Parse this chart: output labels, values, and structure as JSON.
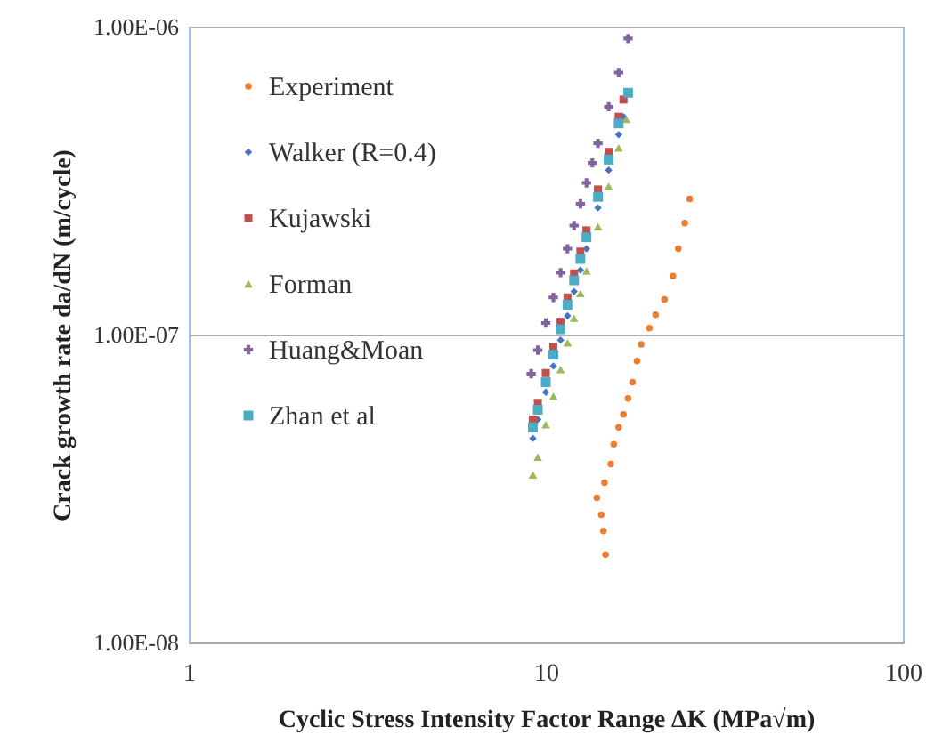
{
  "chart_data": {
    "type": "scatter",
    "xlabel": "Cyclic Stress Intensity Factor Range ΔK (MPa√m)",
    "ylabel": "Crack growth rate da/dN (m/cycle)",
    "log": "xy",
    "grid": "y",
    "legend": "top left",
    "xlim": [
      1,
      100
    ],
    "xticks": [
      1,
      10,
      100
    ],
    "ylim": [
      1e-08,
      1e-06
    ],
    "yticks": [
      {
        "value": 1e-08,
        "label": "1.00E-08"
      },
      {
        "value": 1e-07,
        "label": "1.00E-07"
      },
      {
        "value": 1e-06,
        "label": "1.00E-06"
      }
    ],
    "series": [
      {
        "name": "Experiment",
        "color": "#ed7d31",
        "marker": "circle",
        "x": [
          14.7,
          14.5,
          14.3,
          13.9,
          14.6,
          15.2,
          15.5,
          16.0,
          16.5,
          17.0,
          17.5,
          18.0,
          18.5,
          19.5,
          20.3,
          21.5,
          22.7,
          23.5,
          24.5,
          25.3
        ],
        "values": [
          1.93e-08,
          2.3e-08,
          2.6e-08,
          2.95e-08,
          3.3e-08,
          3.8e-08,
          4.4e-08,
          5e-08,
          5.5e-08,
          6.2e-08,
          7e-08,
          8.2e-08,
          9.3e-08,
          1.05e-07,
          1.16e-07,
          1.3e-07,
          1.55e-07,
          1.9e-07,
          2.3e-07,
          2.76e-07
        ]
      },
      {
        "name": "Walker (R=0.4)",
        "color": "#4472c4",
        "marker": "diamond",
        "x": [
          9.2,
          9.5,
          10,
          10.5,
          11,
          11.5,
          12,
          12.5,
          13,
          14,
          15,
          16,
          16.5
        ],
        "values": [
          4.6e-08,
          5.3e-08,
          6.5e-08,
          7.9e-08,
          9.6e-08,
          1.15e-07,
          1.38e-07,
          1.62e-07,
          1.9e-07,
          2.58e-07,
          3.42e-07,
          4.46e-07,
          5.1e-07
        ]
      },
      {
        "name": "Kujawski",
        "color": "#c0504d",
        "marker": "square",
        "x": [
          9.2,
          9.5,
          10,
          10.5,
          11,
          11.5,
          12,
          12.5,
          13,
          14,
          15,
          16,
          16.5
        ],
        "values": [
          5.3e-08,
          6e-08,
          7.5e-08,
          9.1e-08,
          1.1e-07,
          1.32e-07,
          1.58e-07,
          1.86e-07,
          2.18e-07,
          2.96e-07,
          3.92e-07,
          5.1e-07,
          5.8e-07
        ]
      },
      {
        "name": "Forman",
        "color": "#9bbb59",
        "marker": "triangle",
        "x": [
          9.2,
          9.5,
          10,
          10.5,
          11,
          11.5,
          12,
          12.5,
          13,
          14,
          15,
          16,
          16.8
        ],
        "values": [
          3.5e-08,
          4e-08,
          5.1e-08,
          6.3e-08,
          7.7e-08,
          9.4e-08,
          1.13e-07,
          1.36e-07,
          1.61e-07,
          2.24e-07,
          3.03e-07,
          4.04e-07,
          5e-07
        ]
      },
      {
        "name": "Huang&Moan",
        "color": "#8064a2",
        "marker": "cross",
        "x": [
          9.1,
          9.5,
          10,
          10.5,
          11,
          11.5,
          12,
          12.5,
          13,
          13.5,
          14,
          15,
          16,
          17
        ],
        "values": [
          7.46e-08,
          8.9e-08,
          1.09e-07,
          1.32e-07,
          1.59e-07,
          1.9e-07,
          2.26e-07,
          2.66e-07,
          3.11e-07,
          3.61e-07,
          4.18e-07,
          5.5e-07,
          7.1e-07,
          9.15e-07
        ]
      },
      {
        "name": "Zhan et al",
        "color": "#4bacc6",
        "marker": "square",
        "x": [
          9.2,
          9.5,
          10,
          10.5,
          11,
          11.5,
          12,
          12.5,
          13,
          14,
          15,
          16,
          17
        ],
        "values": [
          5e-08,
          5.7e-08,
          7e-08,
          8.6e-08,
          1.04e-07,
          1.25e-07,
          1.5e-07,
          1.76e-07,
          2.07e-07,
          2.8e-07,
          3.7e-07,
          4.85e-07,
          6.1e-07
        ]
      }
    ]
  }
}
